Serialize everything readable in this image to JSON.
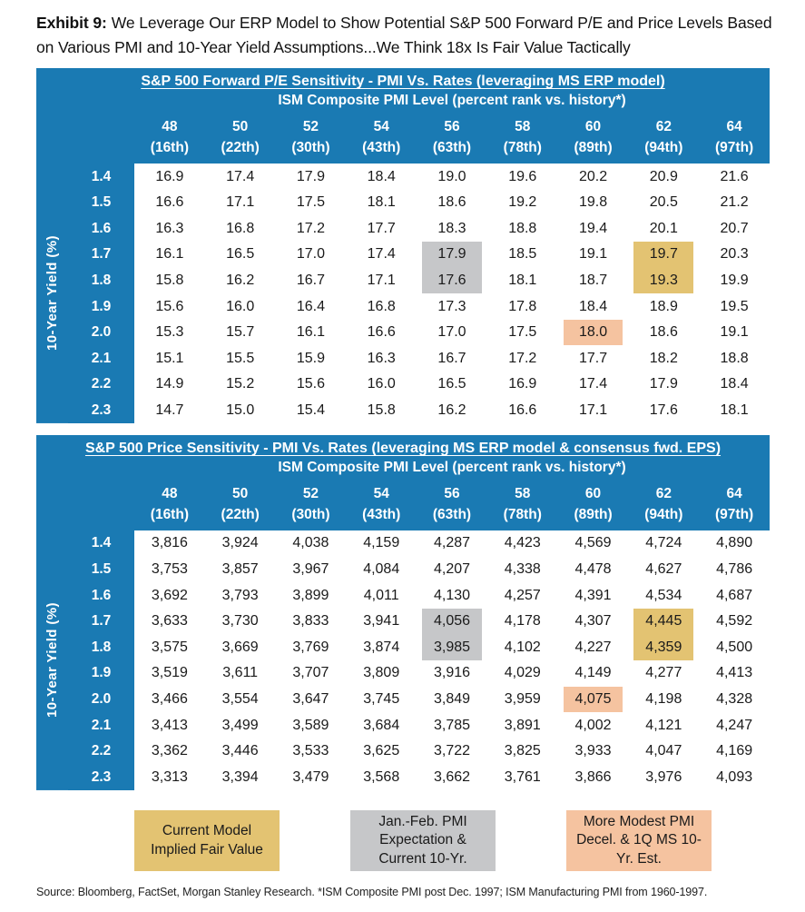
{
  "title": {
    "label": "Exhibit 9:",
    "text": "We Leverage Our ERP Model to Show Potential S&P 500 Forward P/E and Price Levels Based on Various PMI and 10-Year Yield Assumptions...We Think 18x Is Fair Value Tactically"
  },
  "colors": {
    "header_blue": "#1a7ab3",
    "gold": "#e3c372",
    "gray": "#c6c7c9",
    "peach": "#f5c3a0"
  },
  "chart_data": [
    {
      "type": "table",
      "title": "S&P 500 Forward P/E Sensitivity - PMI Vs. Rates (leveraging MS ERP model)",
      "col_axis_label": "ISM Composite PMI Level (percent rank vs. history*)",
      "row_axis_label": "10-Year Yield (%)",
      "col_headers_pmi": [
        "48",
        "50",
        "52",
        "54",
        "56",
        "58",
        "60",
        "62",
        "64"
      ],
      "col_headers_rank": [
        "(16th)",
        "(22th)",
        "(30th)",
        "(43th)",
        "(63th)",
        "(78th)",
        "(89th)",
        "(94th)",
        "(97th)"
      ],
      "row_headers_yield": [
        "1.4",
        "1.5",
        "1.6",
        "1.7",
        "1.8",
        "1.9",
        "2.0",
        "2.1",
        "2.2",
        "2.3"
      ],
      "values": [
        [
          "16.9",
          "17.4",
          "17.9",
          "18.4",
          "19.0",
          "19.6",
          "20.2",
          "20.9",
          "21.6"
        ],
        [
          "16.6",
          "17.1",
          "17.5",
          "18.1",
          "18.6",
          "19.2",
          "19.8",
          "20.5",
          "21.2"
        ],
        [
          "16.3",
          "16.8",
          "17.2",
          "17.7",
          "18.3",
          "18.8",
          "19.4",
          "20.1",
          "20.7"
        ],
        [
          "16.1",
          "16.5",
          "17.0",
          "17.4",
          "17.9",
          "18.5",
          "19.1",
          "19.7",
          "20.3"
        ],
        [
          "15.8",
          "16.2",
          "16.7",
          "17.1",
          "17.6",
          "18.1",
          "18.7",
          "19.3",
          "19.9"
        ],
        [
          "15.6",
          "16.0",
          "16.4",
          "16.8",
          "17.3",
          "17.8",
          "18.4",
          "18.9",
          "19.5"
        ],
        [
          "15.3",
          "15.7",
          "16.1",
          "16.6",
          "17.0",
          "17.5",
          "18.0",
          "18.6",
          "19.1"
        ],
        [
          "15.1",
          "15.5",
          "15.9",
          "16.3",
          "16.7",
          "17.2",
          "17.7",
          "18.2",
          "18.8"
        ],
        [
          "14.9",
          "15.2",
          "15.6",
          "16.0",
          "16.5",
          "16.9",
          "17.4",
          "17.9",
          "18.4"
        ],
        [
          "14.7",
          "15.0",
          "15.4",
          "15.8",
          "16.2",
          "16.6",
          "17.1",
          "17.6",
          "18.1"
        ]
      ],
      "highlights": [
        {
          "color_key": "gray",
          "row": 3,
          "col": 4
        },
        {
          "color_key": "gray",
          "row": 4,
          "col": 4
        },
        {
          "color_key": "gold",
          "row": 3,
          "col": 7
        },
        {
          "color_key": "gold",
          "row": 4,
          "col": 7
        },
        {
          "color_key": "peach",
          "row": 6,
          "col": 6
        }
      ]
    },
    {
      "type": "table",
      "title": "S&P 500 Price Sensitivity - PMI Vs. Rates (leveraging MS ERP model & consensus fwd. EPS)",
      "col_axis_label": "ISM Composite PMI Level (percent rank vs. history*)",
      "row_axis_label": "10-Year Yield (%)",
      "col_headers_pmi": [
        "48",
        "50",
        "52",
        "54",
        "56",
        "58",
        "60",
        "62",
        "64"
      ],
      "col_headers_rank": [
        "(16th)",
        "(22th)",
        "(30th)",
        "(43th)",
        "(63th)",
        "(78th)",
        "(89th)",
        "(94th)",
        "(97th)"
      ],
      "row_headers_yield": [
        "1.4",
        "1.5",
        "1.6",
        "1.7",
        "1.8",
        "1.9",
        "2.0",
        "2.1",
        "2.2",
        "2.3"
      ],
      "values": [
        [
          "3,816",
          "3,924",
          "4,038",
          "4,159",
          "4,287",
          "4,423",
          "4,569",
          "4,724",
          "4,890"
        ],
        [
          "3,753",
          "3,857",
          "3,967",
          "4,084",
          "4,207",
          "4,338",
          "4,478",
          "4,627",
          "4,786"
        ],
        [
          "3,692",
          "3,793",
          "3,899",
          "4,011",
          "4,130",
          "4,257",
          "4,391",
          "4,534",
          "4,687"
        ],
        [
          "3,633",
          "3,730",
          "3,833",
          "3,941",
          "4,056",
          "4,178",
          "4,307",
          "4,445",
          "4,592"
        ],
        [
          "3,575",
          "3,669",
          "3,769",
          "3,874",
          "3,985",
          "4,102",
          "4,227",
          "4,359",
          "4,500"
        ],
        [
          "3,519",
          "3,611",
          "3,707",
          "3,809",
          "3,916",
          "4,029",
          "4,149",
          "4,277",
          "4,413"
        ],
        [
          "3,466",
          "3,554",
          "3,647",
          "3,745",
          "3,849",
          "3,959",
          "4,075",
          "4,198",
          "4,328"
        ],
        [
          "3,413",
          "3,499",
          "3,589",
          "3,684",
          "3,785",
          "3,891",
          "4,002",
          "4,121",
          "4,247"
        ],
        [
          "3,362",
          "3,446",
          "3,533",
          "3,625",
          "3,722",
          "3,825",
          "3,933",
          "4,047",
          "4,169"
        ],
        [
          "3,313",
          "3,394",
          "3,479",
          "3,568",
          "3,662",
          "3,761",
          "3,866",
          "3,976",
          "4,093"
        ]
      ],
      "highlights": [
        {
          "color_key": "gray",
          "row": 3,
          "col": 4
        },
        {
          "color_key": "gray",
          "row": 4,
          "col": 4
        },
        {
          "color_key": "gold",
          "row": 3,
          "col": 7
        },
        {
          "color_key": "gold",
          "row": 4,
          "col": 7
        },
        {
          "color_key": "peach",
          "row": 6,
          "col": 6
        }
      ]
    }
  ],
  "legend": [
    {
      "color_key": "gold",
      "label": "Current Model Implied Fair Value"
    },
    {
      "color_key": "gray",
      "label": "Jan.-Feb. PMI Expectation & Current 10-Yr."
    },
    {
      "color_key": "peach",
      "label": "More Modest PMI Decel. & 1Q MS 10-Yr. Est."
    }
  ],
  "source": "Source: Bloomberg, FactSet, Morgan Stanley Research. *ISM Composite PMI post Dec. 1997; ISM Manufacturing PMI from 1960-1997."
}
